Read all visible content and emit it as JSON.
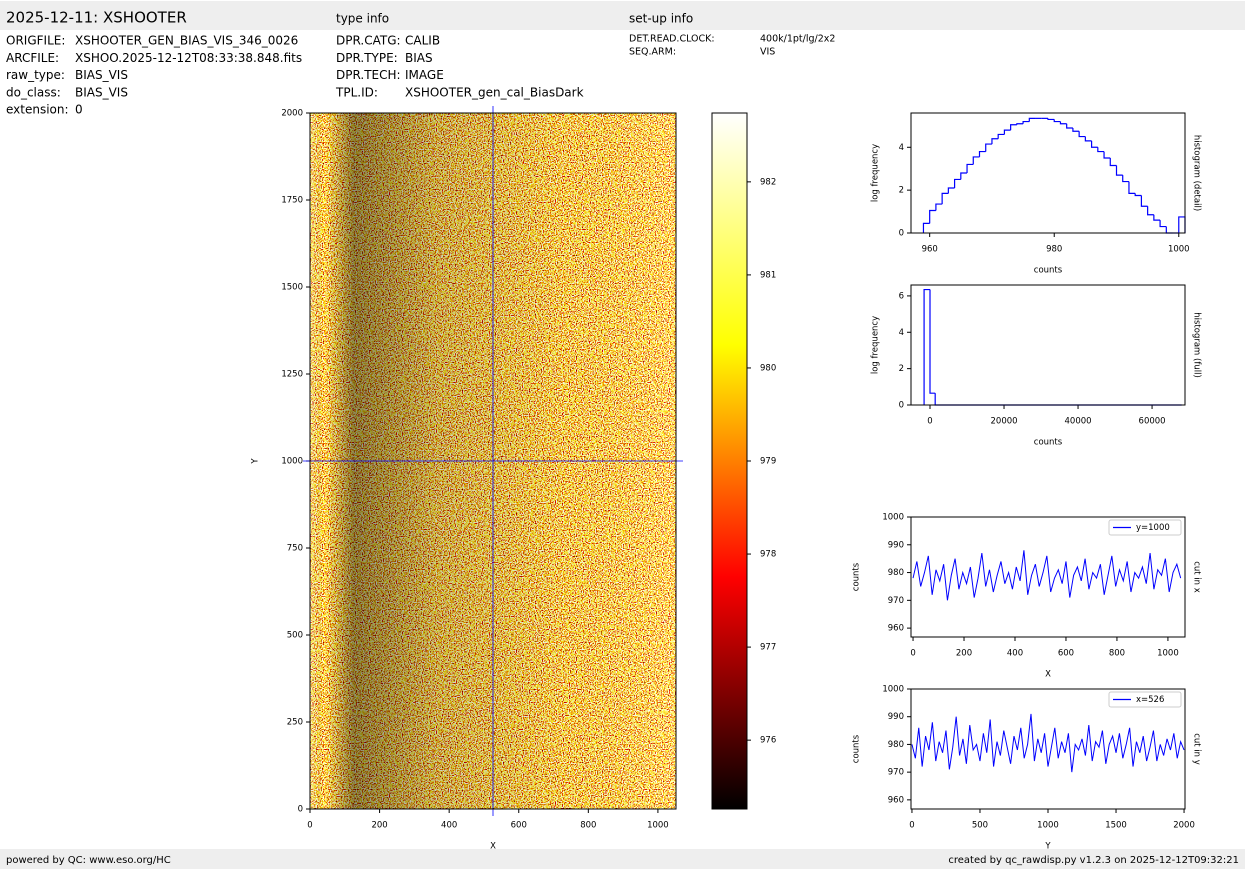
{
  "header": {
    "title": "2025-12-11: XSHOOTER",
    "type_info_title": "type info",
    "setup_info_title": "set-up info",
    "file_info": [
      [
        "ORIGFILE:",
        "XSHOOTER_GEN_BIAS_VIS_346_0026"
      ],
      [
        "ARCFILE:",
        "XSHOO.2025-12-12T08:33:38.848.fits"
      ],
      [
        "raw_type:",
        "BIAS_VIS"
      ],
      [
        "do_class:",
        "BIAS_VIS"
      ],
      [
        "extension:",
        "0"
      ]
    ],
    "type_info": [
      [
        "DPR.CATG:",
        "CALIB"
      ],
      [
        "DPR.TYPE:",
        "BIAS"
      ],
      [
        "DPR.TECH:",
        "IMAGE"
      ],
      [
        "TPL.ID:",
        "XSHOOTER_gen_cal_BiasDark"
      ]
    ],
    "setup_info": [
      [
        "DET.READ.CLOCK:",
        "400k/1pt/lg/2x2"
      ],
      [
        "SEQ.ARM:",
        "VIS"
      ]
    ]
  },
  "footer": {
    "left": "powered by QC: www.eso.org/HC",
    "right": "created by qc_rawdisp.py v1.2.3 on 2025-12-12T09:32:21"
  },
  "chart_data": [
    {
      "type": "image",
      "xlabel": "X",
      "ylabel": "Y",
      "xlim": [
        0,
        1052
      ],
      "ylim": [
        0,
        2000
      ],
      "xticks": [
        0,
        200,
        400,
        600,
        800,
        1000
      ],
      "yticks": [
        0,
        250,
        500,
        750,
        1000,
        1250,
        1500,
        1750,
        2000
      ],
      "crosshair": {
        "x": 526,
        "y": 1000
      },
      "crosshair_color": "#0000ff",
      "colormap": [
        "#000000",
        "#ff0000",
        "#ffff00",
        "#ffffff"
      ],
      "colorbar": {
        "lim": [
          975.26,
          982.74
        ],
        "ticks": [
          976,
          977,
          978,
          979,
          980,
          981,
          982
        ]
      }
    },
    {
      "type": "histogram",
      "xlabel": "counts",
      "ylabel": "log frequency",
      "side_label": "histogram (detail)",
      "color": "#0000ff",
      "xlim": [
        957,
        1001
      ],
      "ylim": [
        0,
        5.6
      ],
      "xticks": [
        960,
        980,
        1000
      ],
      "yticks": [
        0,
        2,
        4
      ],
      "bins": [
        959,
        960,
        961,
        962,
        963,
        964,
        965,
        966,
        967,
        968,
        969,
        970,
        971,
        972,
        973,
        974,
        975,
        976,
        977,
        978,
        979,
        980,
        981,
        982,
        983,
        984,
        985,
        986,
        987,
        988,
        989,
        990,
        991,
        992,
        993,
        994,
        995,
        996,
        997,
        998,
        999,
        1000,
        1001
      ],
      "values": [
        0.45,
        1.05,
        1.35,
        1.85,
        2.1,
        2.5,
        2.8,
        3.2,
        3.55,
        3.8,
        4.15,
        4.4,
        4.6,
        4.8,
        5.05,
        5.1,
        5.2,
        5.35,
        5.35,
        5.35,
        5.3,
        5.2,
        5.1,
        4.9,
        4.75,
        4.5,
        4.3,
        4.0,
        3.8,
        3.5,
        3.15,
        2.7,
        2.4,
        1.85,
        1.75,
        1.25,
        0.85,
        0.6,
        0.3,
        0,
        0,
        0.75
      ]
    },
    {
      "type": "histogram",
      "xlabel": "counts",
      "ylabel": "log frequency",
      "side_label": "histogram (full)",
      "color": "#0000ff",
      "xlim": [
        -5135,
        68900
      ],
      "ylim": [
        0,
        6.6
      ],
      "xticks": [
        0,
        20000,
        40000,
        60000
      ],
      "yticks": [
        0,
        2,
        4,
        6
      ],
      "bins": [
        -1600,
        0,
        1400,
        68000
      ],
      "values": [
        6.35,
        0.65,
        0
      ]
    },
    {
      "type": "line",
      "xlabel": "X",
      "ylabel": "counts",
      "side_label": "cut in x",
      "legend": "upper right",
      "xlim": [
        -8,
        1067
      ],
      "ylim": [
        956.8,
        1000
      ],
      "xticks": [
        0,
        200,
        400,
        600,
        800,
        1000
      ],
      "yticks": [
        960,
        970,
        980,
        990,
        1000
      ],
      "x": [
        0,
        15,
        30,
        45,
        60,
        75,
        90,
        105,
        120,
        135,
        150,
        165,
        180,
        195,
        210,
        225,
        240,
        255,
        270,
        285,
        300,
        315,
        330,
        345,
        360,
        375,
        390,
        405,
        420,
        435,
        450,
        465,
        480,
        495,
        510,
        525,
        540,
        555,
        570,
        585,
        600,
        615,
        630,
        645,
        660,
        675,
        690,
        705,
        720,
        735,
        750,
        765,
        780,
        795,
        810,
        825,
        840,
        855,
        870,
        885,
        900,
        915,
        930,
        945,
        960,
        975,
        990,
        1005,
        1020,
        1035,
        1050
      ],
      "series": [
        {
          "name": "y=1000",
          "color": "#0000ff",
          "values": [
            978,
            984,
            975,
            980,
            986,
            972,
            981,
            977,
            983,
            970,
            979,
            985,
            974,
            980,
            976,
            982,
            971,
            978,
            987,
            975,
            981,
            973,
            979,
            984,
            976,
            980,
            974,
            982,
            977,
            988,
            972,
            979,
            983,
            975,
            980,
            986,
            973,
            978,
            981,
            976,
            984,
            971,
            979,
            982,
            977,
            985,
            974,
            980,
            978,
            983,
            972,
            979,
            986,
            975,
            981,
            977,
            984,
            973,
            980,
            978,
            982,
            976,
            987,
            974,
            981,
            979,
            985,
            973,
            980,
            983,
            978
          ]
        }
      ]
    },
    {
      "type": "line",
      "xlabel": "Y",
      "ylabel": "counts",
      "side_label": "cut in y",
      "legend": "upper right",
      "xlim": [
        -7,
        2007
      ],
      "ylim": [
        956.7,
        1000
      ],
      "xticks": [
        0,
        500,
        1000,
        1500,
        2000
      ],
      "yticks": [
        960,
        970,
        980,
        990,
        1000
      ],
      "x": [
        0,
        25,
        50,
        75,
        100,
        125,
        150,
        175,
        200,
        225,
        250,
        275,
        300,
        325,
        350,
        375,
        400,
        425,
        450,
        475,
        500,
        525,
        550,
        575,
        600,
        625,
        650,
        675,
        700,
        725,
        750,
        775,
        800,
        825,
        850,
        875,
        900,
        925,
        950,
        975,
        1000,
        1025,
        1050,
        1075,
        1100,
        1125,
        1150,
        1175,
        1200,
        1225,
        1250,
        1275,
        1300,
        1325,
        1350,
        1375,
        1400,
        1425,
        1450,
        1475,
        1500,
        1525,
        1550,
        1575,
        1600,
        1625,
        1650,
        1675,
        1700,
        1725,
        1750,
        1775,
        1800,
        1825,
        1850,
        1875,
        1900,
        1925,
        1950,
        1975,
        2000
      ],
      "series": [
        {
          "name": "x=526",
          "color": "#0000ff",
          "values": [
            980,
            975,
            986,
            972,
            983,
            978,
            988,
            974,
            981,
            977,
            985,
            971,
            979,
            990,
            976,
            982,
            973,
            987,
            978,
            980,
            974,
            984,
            977,
            989,
            972,
            981,
            976,
            985,
            979,
            973,
            983,
            978,
            986,
            975,
            980,
            991,
            974,
            982,
            977,
            984,
            972,
            979,
            986,
            975,
            981,
            977,
            984,
            970,
            980,
            978,
            982,
            976,
            987,
            974,
            981,
            979,
            985,
            973,
            980,
            983,
            977,
            984,
            975,
            980,
            986,
            972,
            981,
            977,
            983,
            974,
            979,
            985,
            974,
            980,
            976,
            982,
            978,
            984,
            975,
            981,
            978
          ]
        }
      ]
    }
  ]
}
